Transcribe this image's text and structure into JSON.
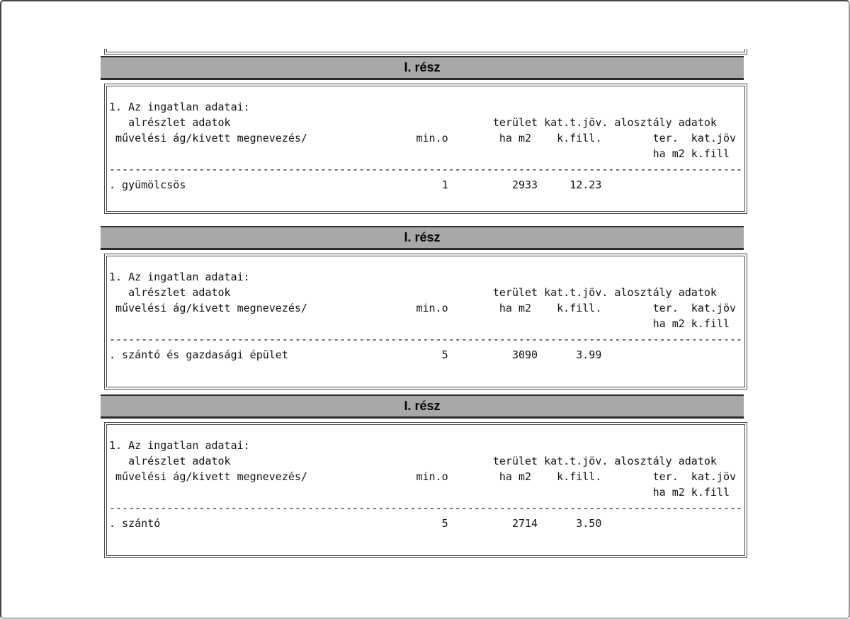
{
  "document": {
    "header_columns": {
      "group_line": [
        "alrészlet adatok",
        "terület",
        "kat.t.jöv.",
        "alosztály adatok"
      ],
      "main_line": [
        "művelési ág/kivett megnevezés/",
        "min.o",
        "ha m2",
        "k.fill.",
        "ter.",
        "kat.jöv"
      ],
      "sub_line": [
        "ha m2",
        "k.fill"
      ]
    },
    "sections": [
      {
        "bar_label": "I. rész",
        "row": {
          "name": "gyümölcsös",
          "min_o": "1",
          "terulet_ha_m2": "2933",
          "kat_t_jov_k_fill": "12.23"
        },
        "lines": [
          "1. Az ingatlan adatai:",
          "   alrészlet adatok                                         terület kat.t.jöv. alosztály adatok",
          " művelési ág/kivett megnevezés/                 min.o        ha m2    k.fill.        ter.  kat.jöv",
          "                                                                                     ha m2 k.fill",
          "---------------------------------------------------------------------------------------------------",
          ". gyümölcsös                                        1          2933     12.23"
        ]
      },
      {
        "bar_label": "I. rész",
        "row": {
          "name": "szántó és gazdasági épület",
          "min_o": "5",
          "terulet_ha_m2": "3090",
          "kat_t_jov_k_fill": "3.99"
        },
        "lines": [
          "1. Az ingatlan adatai:",
          "   alrészlet adatok                                         terület kat.t.jöv. alosztály adatok",
          " művelési ág/kivett megnevezés/                 min.o        ha m2    k.fill.        ter.  kat.jöv",
          "                                                                                     ha m2 k.fill",
          "---------------------------------------------------------------------------------------------------",
          ". szántó és gazdasági épület                        5          3090      3.99"
        ]
      },
      {
        "bar_label": "I. rész",
        "row": {
          "name": "szántó",
          "min_o": "5",
          "terulet_ha_m2": "2714",
          "kat_t_jov_k_fill": "3.50"
        },
        "lines": [
          "1. Az ingatlan adatai:",
          "   alrészlet adatok                                         terület kat.t.jöv. alosztály adatok",
          " művelési ág/kivett megnevezés/                 min.o        ha m2    k.fill.        ter.  kat.jöv",
          "                                                                                     ha m2 k.fill",
          "---------------------------------------------------------------------------------------------------",
          ". szántó                                            5          2714      3.50"
        ]
      }
    ],
    "colors": {
      "bar_fill": "#a8a8a8",
      "bar_border": "#2b2b2b",
      "box_border": "#4c4c4c",
      "text": "#141414"
    }
  }
}
